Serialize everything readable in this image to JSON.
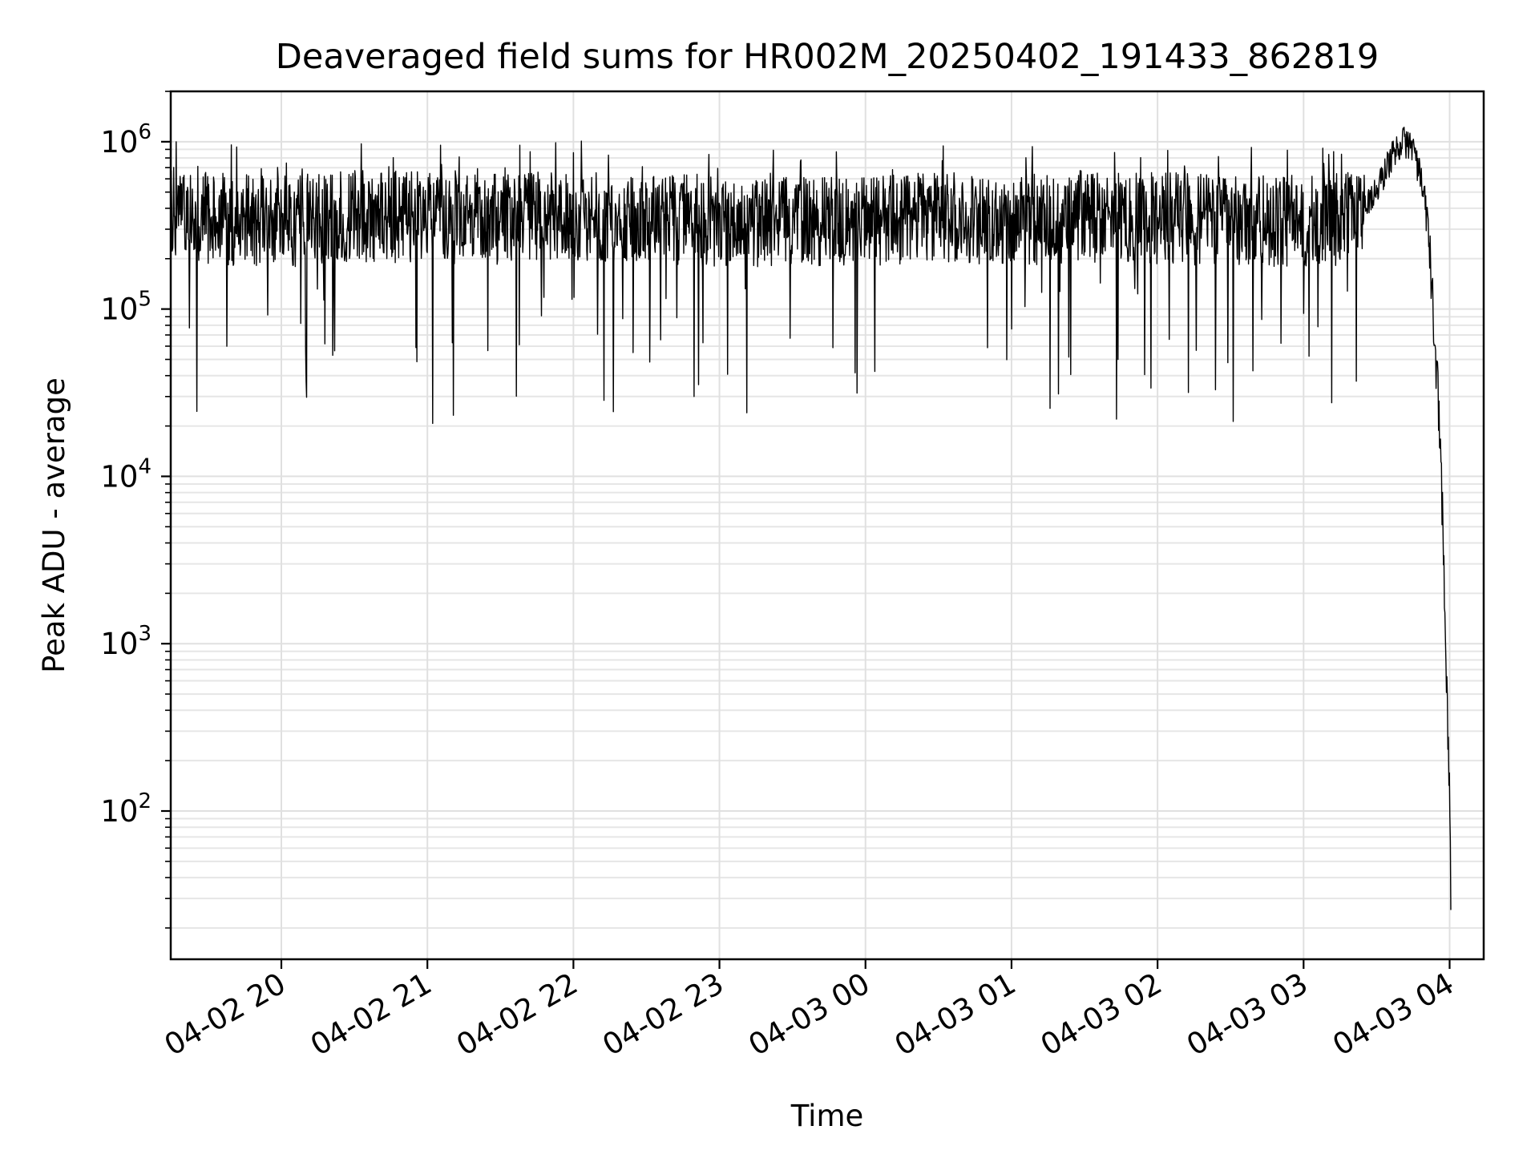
{
  "chart_data": {
    "type": "line",
    "title": "Deaveraged field sums for HR002M_20250402_191433_862819",
    "xlabel": "Time",
    "ylabel": "Peak ADU - average",
    "yscale": "log",
    "ylim": [
      13,
      2000000
    ],
    "xlim": [
      "2025-04-02 19:14:33",
      "2025-04-03 04:14:00"
    ],
    "grid": true,
    "x_ticks": [
      {
        "label": "04-02 20",
        "time": "2025-04-02 20:00"
      },
      {
        "label": "04-02 21",
        "time": "2025-04-02 21:00"
      },
      {
        "label": "04-02 22",
        "time": "2025-04-02 22:00"
      },
      {
        "label": "04-02 23",
        "time": "2025-04-02 23:00"
      },
      {
        "label": "04-03 00",
        "time": "2025-04-03 00:00"
      },
      {
        "label": "04-03 01",
        "time": "2025-04-03 01:00"
      },
      {
        "label": "04-03 02",
        "time": "2025-04-03 02:00"
      },
      {
        "label": "04-03 03",
        "time": "2025-04-03 03:00"
      },
      {
        "label": "04-03 04",
        "time": "2025-04-03 04:00"
      }
    ],
    "y_ticks": [
      {
        "base": "10",
        "exp": "2",
        "value": 100
      },
      {
        "base": "10",
        "exp": "3",
        "value": 1000
      },
      {
        "base": "10",
        "exp": "4",
        "value": 10000
      },
      {
        "base": "10",
        "exp": "5",
        "value": 100000
      },
      {
        "base": "10",
        "exp": "6",
        "value": 1000000
      }
    ],
    "series": [
      {
        "color": "#000000",
        "baseline_level": 350000,
        "noise_dips_down_to": 20000,
        "x": [
          "2025-04-02 19:14:33",
          "2025-04-02 19:30",
          "2025-04-02 19:45",
          "2025-04-02 20:00",
          "2025-04-02 20:30",
          "2025-04-02 21:00",
          "2025-04-02 21:30",
          "2025-04-02 22:00",
          "2025-04-02 22:30",
          "2025-04-02 23:00",
          "2025-04-02 23:30",
          "2025-04-03 00:00",
          "2025-04-03 00:30",
          "2025-04-03 01:00",
          "2025-04-03 01:30",
          "2025-04-03 02:00",
          "2025-04-03 02:30",
          "2025-04-03 03:00",
          "2025-04-03 03:20",
          "2025-04-03 03:30",
          "2025-04-03 03:35",
          "2025-04-03 03:40",
          "2025-04-03 03:45",
          "2025-04-03 03:48",
          "2025-04-03 03:51",
          "2025-04-03 03:54",
          "2025-04-03 03:56",
          "2025-04-03 03:58",
          "2025-04-03 03:59",
          "2025-04-03 04:00",
          "2025-04-03 04:00:30"
        ],
        "y": [
          400000,
          350000,
          340000,
          330000,
          360000,
          350000,
          340000,
          370000,
          350000,
          330000,
          340000,
          330000,
          350000,
          340000,
          360000,
          350000,
          340000,
          330000,
          350000,
          500000,
          750000,
          1000000,
          950000,
          600000,
          350000,
          60000,
          20000,
          2000,
          400,
          150,
          25
        ]
      }
    ]
  }
}
